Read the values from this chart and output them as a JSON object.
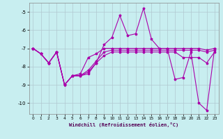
{
  "xlabel": "Windchill (Refroidissement éolien,°C)",
  "background_color": "#c8eef0",
  "grid_color": "#b0c8d0",
  "line_color": "#aa00aa",
  "xlim": [
    -0.5,
    23.5
  ],
  "ylim": [
    -10.6,
    -4.5
  ],
  "yticks": [
    -10,
    -9,
    -8,
    -7,
    -6,
    -5
  ],
  "xticks": [
    0,
    1,
    2,
    3,
    4,
    5,
    6,
    7,
    8,
    9,
    10,
    11,
    12,
    13,
    14,
    15,
    16,
    17,
    18,
    19,
    20,
    21,
    22,
    23
  ],
  "series": [
    [
      -7.0,
      -7.3,
      -7.8,
      -7.2,
      -9.0,
      -8.5,
      -8.4,
      -7.5,
      -7.3,
      -7.0,
      -7.0,
      -7.0,
      -7.0,
      -7.0,
      -7.0,
      -7.0,
      -7.0,
      -7.0,
      -7.0,
      -7.0,
      -7.0,
      -7.0,
      -7.1,
      -7.0
    ],
    [
      -7.0,
      -7.3,
      -7.8,
      -7.2,
      -9.0,
      -8.5,
      -8.5,
      -8.2,
      -7.7,
      -7.2,
      -7.1,
      -7.1,
      -7.1,
      -7.1,
      -7.1,
      -7.1,
      -7.1,
      -7.1,
      -7.1,
      -7.1,
      -7.1,
      -7.1,
      -7.2,
      -7.1
    ],
    [
      -7.0,
      -7.3,
      -7.8,
      -7.2,
      -9.0,
      -8.5,
      -8.5,
      -8.3,
      -7.8,
      -7.4,
      -7.2,
      -7.2,
      -7.2,
      -7.2,
      -7.2,
      -7.2,
      -7.2,
      -7.2,
      -7.2,
      -7.5,
      -7.5,
      -7.5,
      -7.8,
      -7.2
    ],
    [
      -7.0,
      -7.3,
      -7.8,
      -7.2,
      -9.0,
      -8.5,
      -8.5,
      -8.4,
      -7.8,
      -6.8,
      -6.4,
      -5.2,
      -6.3,
      -6.2,
      -4.8,
      -6.5,
      -7.0,
      -7.0,
      -8.7,
      -8.6,
      -7.2,
      -10.0,
      -10.4,
      -7.0
    ]
  ]
}
